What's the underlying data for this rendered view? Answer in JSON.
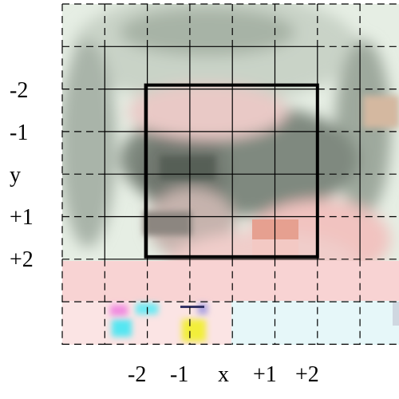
{
  "diagram": {
    "grid": {
      "columns": 8,
      "rows": 8,
      "line_color": "#000000",
      "line_style": "dashed"
    },
    "highlight_box": {
      "col_start": 2,
      "col_end": 6,
      "row_start": 2,
      "row_end": 6,
      "color": "#000000"
    },
    "y_axis": {
      "labels": [
        "-2",
        "-1",
        "y",
        "+1",
        "+2"
      ]
    },
    "x_axis": {
      "labels": [
        "-2",
        "-1",
        "x",
        "+1",
        "+2"
      ]
    },
    "image_colors": {
      "background_pale": "#dfe9df",
      "hair_gray": "#8f9a8f",
      "skin_pink": "#f3c9c6",
      "patch_salmon": "#e8a090",
      "strip_light_pink": "#fbe3e3",
      "strip_light_cyan": "#e6f7f9",
      "blob_magenta": "#f08be0",
      "blob_cyan": "#55e6f2",
      "blob_yellow": "#f2ee3a"
    }
  }
}
